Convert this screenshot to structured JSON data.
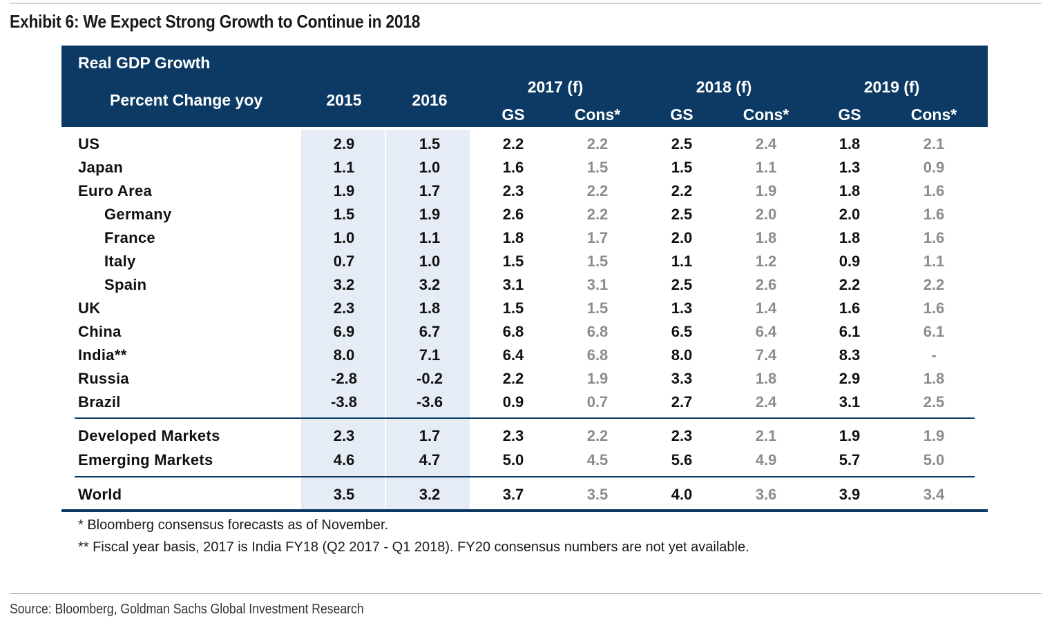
{
  "title": "Exhibit 6: We Expect Strong Growth to Continue in 2018",
  "table": {
    "header": {
      "label1": "Real GDP Growth",
      "label2": "Percent Change yoy",
      "y2015": "2015",
      "y2016": "2016",
      "y2017": "2017 (f)",
      "y2018": "2018 (f)",
      "y2019": "2019 (f)",
      "gs": "GS",
      "cons": "Cons*"
    }
  },
  "chart_data": {
    "type": "table",
    "title": "Real GDP Growth",
    "subtitle": "Percent Change yoy",
    "columns": [
      "2015",
      "2016",
      "2017 (f) GS",
      "2017 (f) Cons*",
      "2018 (f) GS",
      "2018 (f) Cons*",
      "2019 (f) GS",
      "2019 (f) Cons*"
    ],
    "rows": [
      {
        "label": "US",
        "values": [
          "2.9",
          "1.5",
          "2.2",
          "2.2",
          "2.5",
          "2.4",
          "1.8",
          "2.1"
        ]
      },
      {
        "label": "Japan",
        "values": [
          "1.1",
          "1.0",
          "1.6",
          "1.5",
          "1.5",
          "1.1",
          "1.3",
          "0.9"
        ]
      },
      {
        "label": "Euro Area",
        "values": [
          "1.9",
          "1.7",
          "2.3",
          "2.2",
          "2.2",
          "1.9",
          "1.8",
          "1.6"
        ]
      },
      {
        "label": "Germany",
        "values": [
          "1.5",
          "1.9",
          "2.6",
          "2.2",
          "2.5",
          "2.0",
          "2.0",
          "1.6"
        ]
      },
      {
        "label": "France",
        "values": [
          "1.0",
          "1.1",
          "1.8",
          "1.7",
          "2.0",
          "1.8",
          "1.8",
          "1.6"
        ]
      },
      {
        "label": "Italy",
        "values": [
          "0.7",
          "1.0",
          "1.5",
          "1.5",
          "1.1",
          "1.2",
          "0.9",
          "1.1"
        ]
      },
      {
        "label": "Spain",
        "values": [
          "3.2",
          "3.2",
          "3.1",
          "3.1",
          "2.5",
          "2.6",
          "2.2",
          "2.2"
        ]
      },
      {
        "label": "UK",
        "values": [
          "2.3",
          "1.8",
          "1.5",
          "1.5",
          "1.3",
          "1.4",
          "1.6",
          "1.6"
        ]
      },
      {
        "label": "China",
        "values": [
          "6.9",
          "6.7",
          "6.8",
          "6.8",
          "6.5",
          "6.4",
          "6.1",
          "6.1"
        ]
      },
      {
        "label": "India**",
        "values": [
          "8.0",
          "7.1",
          "6.4",
          "6.8",
          "8.0",
          "7.4",
          "8.3",
          "-"
        ]
      },
      {
        "label": "Russia",
        "values": [
          "-2.8",
          "-0.2",
          "2.2",
          "1.9",
          "3.3",
          "1.8",
          "2.9",
          "1.8"
        ]
      },
      {
        "label": "Brazil",
        "values": [
          "-3.8",
          "-3.6",
          "0.9",
          "0.7",
          "2.7",
          "2.4",
          "3.1",
          "2.5"
        ]
      },
      {
        "label": "Developed Markets",
        "values": [
          "2.3",
          "1.7",
          "2.3",
          "2.2",
          "2.3",
          "2.1",
          "1.9",
          "1.9"
        ]
      },
      {
        "label": "Emerging Markets",
        "values": [
          "4.6",
          "4.7",
          "5.0",
          "4.5",
          "5.6",
          "4.9",
          "5.7",
          "5.0"
        ]
      },
      {
        "label": "World",
        "values": [
          "3.5",
          "3.2",
          "3.7",
          "3.5",
          "4.0",
          "3.6",
          "3.9",
          "3.4"
        ]
      }
    ],
    "highlight_columns": [
      "2015",
      "2016"
    ],
    "colors": {
      "header_bg": "#0c3a64",
      "highlight_bg": "#e6ecf5",
      "consensus_text": "#8c8c8c"
    }
  },
  "footnotes": [
    "* Bloomberg consensus forecasts as of November.",
    "** Fiscal year basis, 2017 is India FY18 (Q2 2017 - Q1 2018). FY20 consensus numbers are not yet available."
  ],
  "source": "Source: Bloomberg, Goldman Sachs Global Investment Research"
}
